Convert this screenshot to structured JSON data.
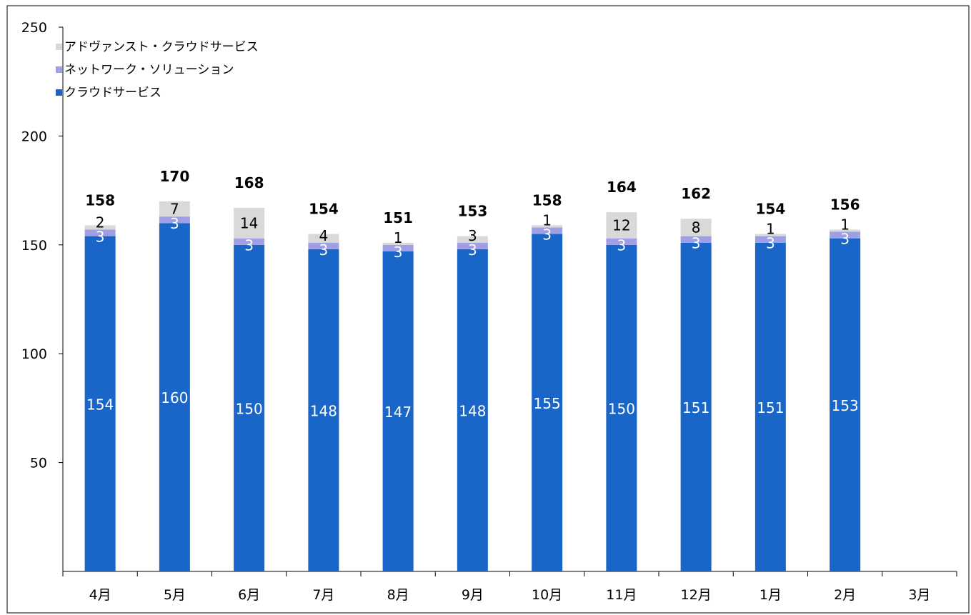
{
  "chart_data": {
    "type": "bar",
    "stacked": true,
    "categories": [
      "4月",
      "5月",
      "6月",
      "7月",
      "8月",
      "9月",
      "10月",
      "11月",
      "12月",
      "1月",
      "2月",
      "3月"
    ],
    "series": [
      {
        "name": "クラウドサービス",
        "color": "#1a66c8",
        "label_color": "#ffffff",
        "values": [
          154,
          160,
          150,
          148,
          147,
          148,
          155,
          150,
          151,
          151,
          153,
          null
        ]
      },
      {
        "name": "ネットワーク・ソリューション",
        "color": "#9f9fe6",
        "label_color": "#ffffff",
        "values": [
          3,
          3,
          3,
          3,
          3,
          3,
          3,
          3,
          3,
          3,
          3,
          null
        ]
      },
      {
        "name": "アドヴァンスト・クラウドサービス",
        "color": "#d9d9d9",
        "label_color": "#000000",
        "values": [
          2,
          7,
          14,
          4,
          1,
          3,
          1,
          12,
          8,
          1,
          1,
          null
        ]
      }
    ],
    "totals": [
      158,
      170,
      168,
      154,
      151,
      153,
      158,
      164,
      162,
      154,
      156,
      null
    ],
    "ylim": [
      0,
      250
    ],
    "yticks": [
      "50",
      "100",
      "150",
      "200",
      "250"
    ],
    "grid": false,
    "legend_position": "top-left",
    "legend_order": [
      2,
      1,
      0
    ]
  }
}
